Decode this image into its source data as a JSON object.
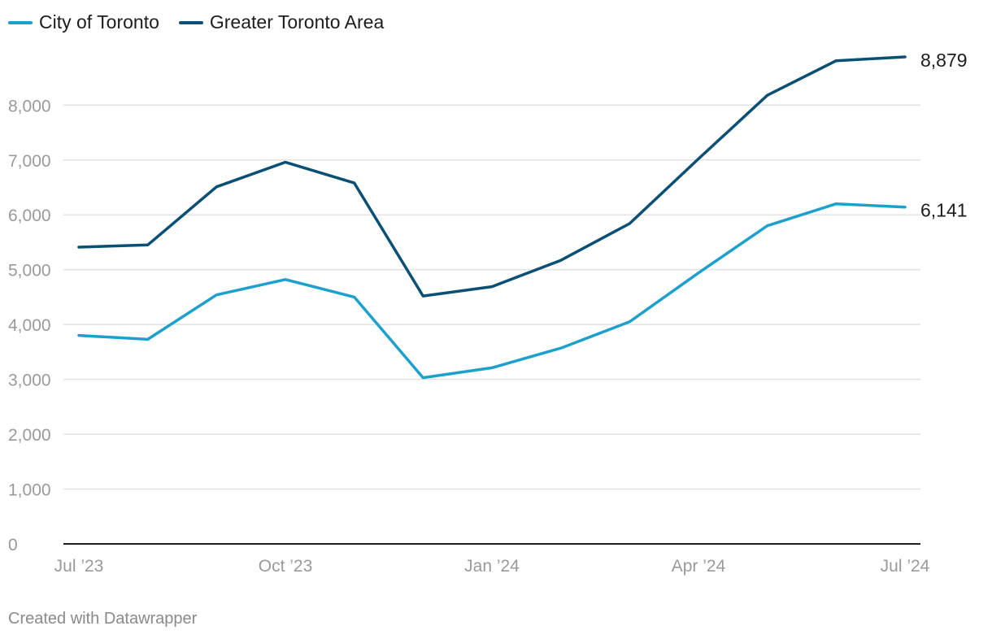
{
  "colors": {
    "city": "#1ea0cc",
    "gta": "#0a4f74",
    "grid": "#e3e3e3",
    "axis": "#1d1d1d"
  },
  "legend": {
    "city_label": "City of Toronto",
    "gta_label": "Greater Toronto Area"
  },
  "credit": "Created with Datawrapper",
  "chart_data": {
    "type": "line",
    "x": [
      "2023-07",
      "2023-08",
      "2023-09",
      "2023-10",
      "2023-11",
      "2023-12",
      "2024-01",
      "2024-02",
      "2024-03",
      "2024-04",
      "2024-05",
      "2024-06",
      "2024-07"
    ],
    "x_ticks": [
      {
        "x": "2023-07",
        "label": "Jul ’23"
      },
      {
        "x": "2023-10",
        "label": "Oct ’23"
      },
      {
        "x": "2024-01",
        "label": "Jan ’24"
      },
      {
        "x": "2024-04",
        "label": "Apr ’24"
      },
      {
        "x": "2024-07",
        "label": "Jul ’24"
      }
    ],
    "y_ticks": [
      0,
      1000,
      2000,
      3000,
      4000,
      5000,
      6000,
      7000,
      8000
    ],
    "y_tick_labels": [
      "0",
      "1,000",
      "2,000",
      "3,000",
      "4,000",
      "5,000",
      "6,000",
      "7,000",
      "8,000"
    ],
    "ylim": [
      0,
      8879
    ],
    "grid": true,
    "legend_position": "top-left",
    "series": [
      {
        "name": "City of Toronto",
        "color": "#1ea0cc",
        "values": [
          3800,
          3730,
          4540,
          4820,
          4500,
          3030,
          3210,
          3570,
          4050,
          4940,
          5800,
          6200,
          6141
        ],
        "end_label": "6,141"
      },
      {
        "name": "Greater Toronto Area",
        "color": "#0a4f74",
        "values": [
          5410,
          5450,
          6510,
          6960,
          6580,
          4520,
          4690,
          5170,
          5840,
          7020,
          8180,
          8810,
          8879
        ],
        "end_label": "8,879"
      }
    ]
  }
}
